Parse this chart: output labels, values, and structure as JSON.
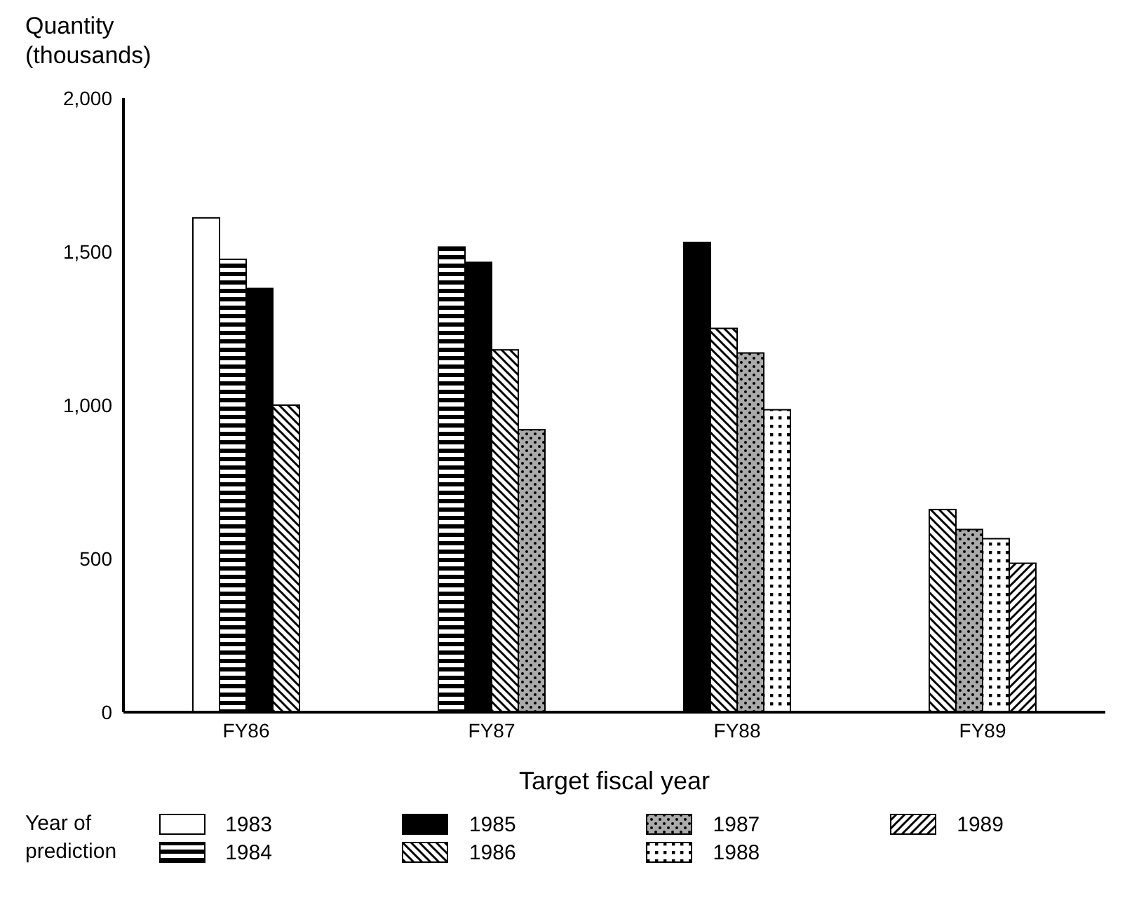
{
  "chart_data": {
    "type": "bar",
    "xlabel": "Target fiscal year",
    "ylabel": "Quantity (thousands)",
    "legend_title": "Year of prediction",
    "legend": "bottom",
    "categories": [
      "FY86",
      "FY87",
      "FY88",
      "FY89"
    ],
    "ylim": [
      0,
      2000
    ],
    "yticks": [
      0,
      {
        "value": 500,
        "label": "500"
      },
      {
        "value": 1000,
        "label": "1,000"
      },
      {
        "value": 1500,
        "label": "1,500"
      },
      {
        "value": 2000,
        "label": "2,000"
      }
    ],
    "series": [
      {
        "name": "1983",
        "color": "#000000",
        "values": [
          1610,
          null,
          null,
          null
        ]
      },
      {
        "name": "1984",
        "color": "#000000",
        "values": [
          1475,
          1515,
          null,
          null
        ]
      },
      {
        "name": "1985",
        "color": "#000000",
        "values": [
          1380,
          1465,
          1530,
          null
        ]
      },
      {
        "name": "1986",
        "color": "#000000",
        "values": [
          1000,
          1180,
          1250,
          660
        ]
      },
      {
        "name": "1987",
        "color": "#000000",
        "values": [
          null,
          920,
          1170,
          595
        ]
      },
      {
        "name": "1988",
        "color": "#000000",
        "values": [
          null,
          null,
          985,
          565
        ]
      },
      {
        "name": "1989",
        "color": "#000000",
        "values": [
          null,
          null,
          null,
          485
        ]
      }
    ]
  }
}
